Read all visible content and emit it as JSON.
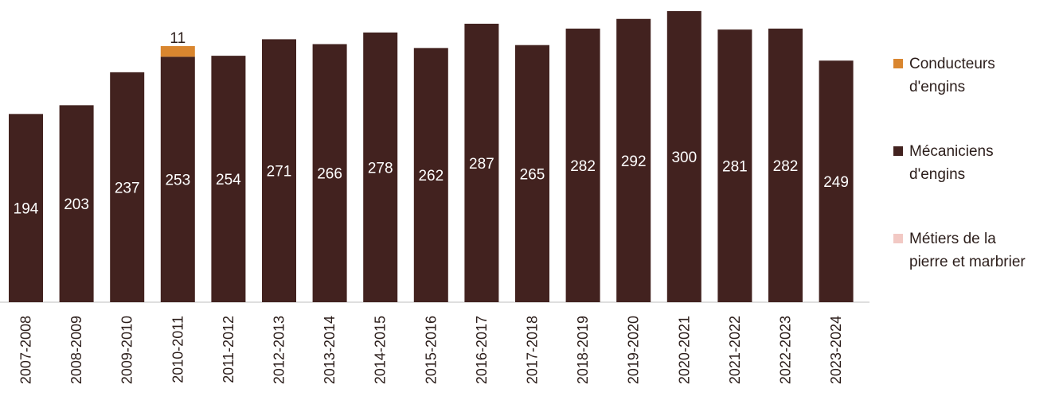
{
  "chart_data": {
    "type": "bar",
    "stacked": true,
    "categories": [
      "2007-2008",
      "2008-2009",
      "2009-2010",
      "2010-2011",
      "2011-2012",
      "2012-2013",
      "2013-2014",
      "2014-2015",
      "2015-2016",
      "2016-2017",
      "2017-2018",
      "2018-2019",
      "2019-2020",
      "2020-2021",
      "2021-2022",
      "2022-2023",
      "2023-2024"
    ],
    "series": [
      {
        "name": "Mécaniciens d'engins",
        "color": "#42221f",
        "values": [
          194,
          203,
          237,
          253,
          254,
          271,
          266,
          278,
          262,
          287,
          265,
          282,
          292,
          300,
          281,
          282,
          249
        ]
      },
      {
        "name": "Conducteurs d'engins",
        "color": "#d9862f",
        "values": [
          0,
          0,
          0,
          11,
          0,
          0,
          0,
          0,
          0,
          0,
          0,
          0,
          0,
          0,
          0,
          0,
          0
        ]
      },
      {
        "name": "Métiers de la pierre et marbrier",
        "color": "#f2c9c4",
        "values": [
          0,
          0,
          0,
          0,
          0,
          0,
          0,
          0,
          0,
          0,
          0,
          0,
          0,
          0,
          0,
          0,
          0
        ]
      }
    ],
    "ylim": [
      0,
      300
    ],
    "grid": false,
    "legend_position": "right"
  },
  "legend": [
    {
      "label": "Conducteurs\nd'engins",
      "color": "#d9862f"
    },
    {
      "label": "Mécaniciens\nd'engins",
      "color": "#42221f"
    },
    {
      "label": "Métiers de la\npierre et marbrier",
      "color": "#f2c9c4"
    }
  ]
}
